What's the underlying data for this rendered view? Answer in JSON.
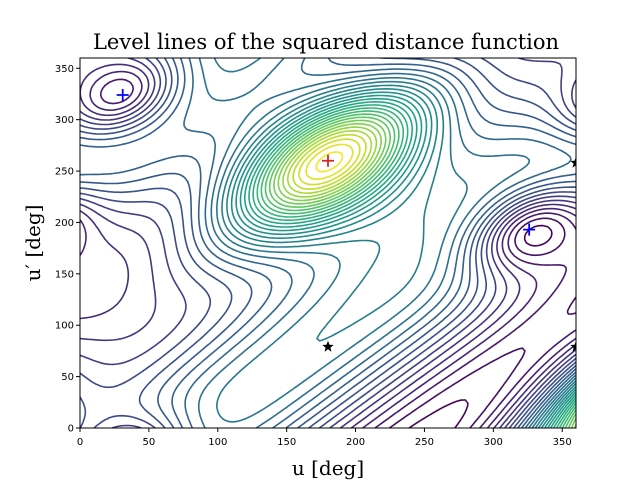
{
  "chart_data": {
    "type": "contour",
    "title": "Level lines of the squared distance function",
    "xlabel": "u [deg]",
    "ylabel": "u′ [deg]",
    "xlim": [
      0,
      360
    ],
    "ylim": [
      0,
      360
    ],
    "xticks": [
      0,
      50,
      100,
      150,
      200,
      250,
      300,
      350
    ],
    "yticks": [
      0,
      50,
      100,
      150,
      200,
      250,
      300,
      350
    ],
    "grid": false,
    "colormap": "viridis",
    "contour_levels": 34,
    "markers": [
      {
        "kind": "maximum",
        "symbol": "+",
        "color": "#d62728",
        "x": 180,
        "y": 260
      },
      {
        "kind": "minimum",
        "symbol": "+",
        "color": "#0000ff",
        "x": 31,
        "y": 324
      },
      {
        "kind": "minimum",
        "symbol": "+",
        "color": "#0000ff",
        "x": 326,
        "y": 193
      },
      {
        "kind": "saddle",
        "symbol": "★",
        "color": "#000000",
        "x": 180,
        "y": 79
      },
      {
        "kind": "saddle",
        "symbol": "★",
        "color": "#000000",
        "x": 360,
        "y": 79
      },
      {
        "kind": "saddle",
        "symbol": "★",
        "color": "#000000",
        "x": 360,
        "y": 258
      }
    ]
  }
}
